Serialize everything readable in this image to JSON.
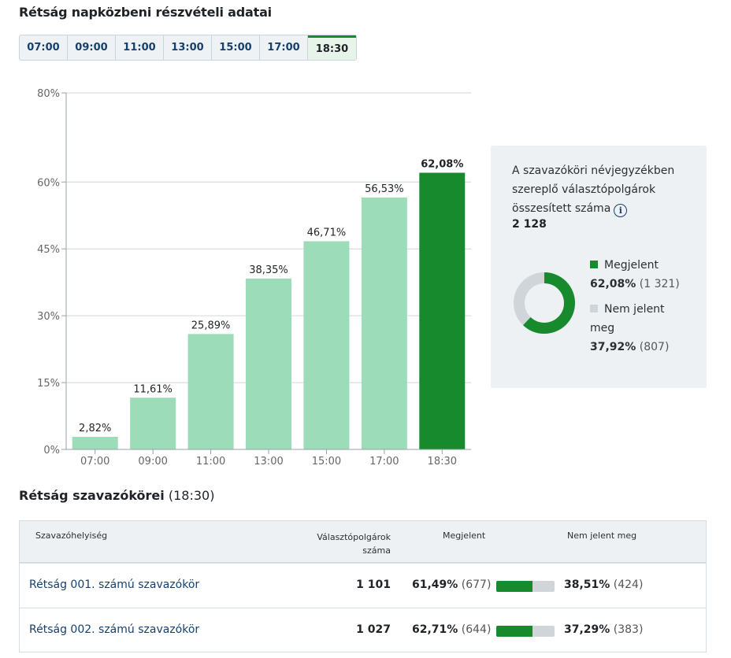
{
  "page_title": "Rétság napközbeni részvételi adatai",
  "tabs": [
    {
      "label": "07:00",
      "active": false
    },
    {
      "label": "09:00",
      "active": false
    },
    {
      "label": "11:00",
      "active": false
    },
    {
      "label": "13:00",
      "active": false
    },
    {
      "label": "15:00",
      "active": false
    },
    {
      "label": "17:00",
      "active": false
    },
    {
      "label": "18:30",
      "active": true
    }
  ],
  "colors": {
    "accent": "#178a2e",
    "bar_light": "#9cdcb8",
    "absent": "#cfd5d9",
    "link": "#15406e",
    "panel_bg": "#edf1f4"
  },
  "chart_data": {
    "type": "bar",
    "categories": [
      "07:00",
      "09:00",
      "11:00",
      "13:00",
      "15:00",
      "17:00",
      "18:30"
    ],
    "values": [
      2.82,
      11.61,
      25.89,
      38.35,
      46.71,
      56.53,
      62.08
    ],
    "data_labels": [
      "2,82%",
      "11,61%",
      "25,89%",
      "38,35%",
      "46,71%",
      "56,53%",
      "62,08%"
    ],
    "highlight_index": 6,
    "yticks": [
      0,
      15,
      30,
      45,
      60,
      80
    ],
    "ytick_labels": [
      "0%",
      "15%",
      "30%",
      "45%",
      "60%",
      "80%"
    ],
    "ylim": [
      0,
      80
    ],
    "grid": true
  },
  "info_box": {
    "description": "A szavazóköri névjegyzékben szereplő választópolgárok összesített száma",
    "info_icon": "info-icon",
    "total": "2 128",
    "present_label": "Megjelent",
    "present_pct": "62,08%",
    "present_count": "(1 321)",
    "present_fraction": 0.6208,
    "absent_label": "Nem jelent meg",
    "absent_pct": "37,92%",
    "absent_count": "(807)"
  },
  "section": {
    "title_bold": "Rétság szavazókörei",
    "title_time": " (18:30)"
  },
  "table": {
    "headers": {
      "location": "Szavazóhelyiség",
      "voters_line1": "Választópolgárok",
      "voters_line2": "száma",
      "present": "Megjelent",
      "absent": "Nem jelent meg"
    },
    "rows": [
      {
        "name": "Rétság 001. számú szavazókör",
        "voters": "1 101",
        "present_pct": "61,49%",
        "present_count": "(677)",
        "present_fraction": 0.6149,
        "absent_pct": "38,51%",
        "absent_count": "(424)"
      },
      {
        "name": "Rétság 002. számú szavazókör",
        "voters": "1 027",
        "present_pct": "62,71%",
        "present_count": "(644)",
        "present_fraction": 0.6271,
        "absent_pct": "37,29%",
        "absent_count": "(383)"
      }
    ]
  }
}
